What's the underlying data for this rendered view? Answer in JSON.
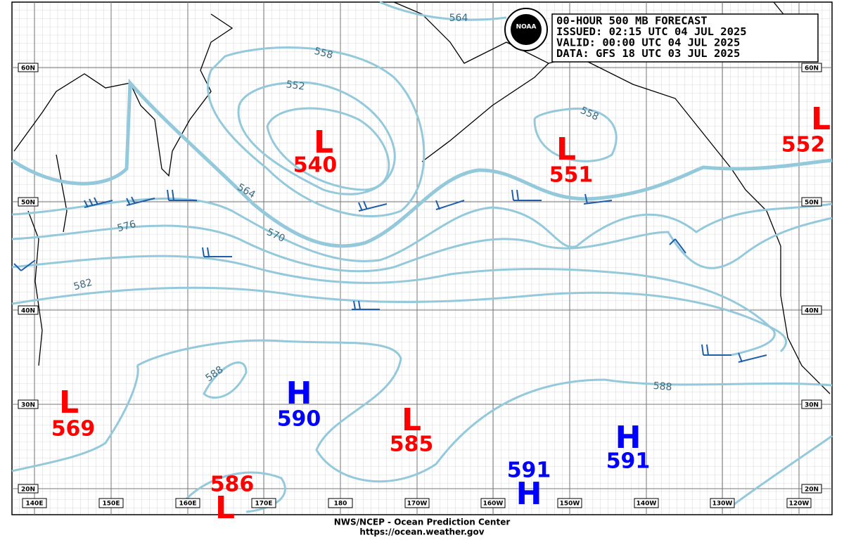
{
  "header": {
    "lines": [
      "00-HOUR 500 MB FORECAST",
      "ISSUED: 02:15 UTC 04 JUL 2025",
      "VALID:  00:00 UTC 04 JUL 2025",
      "DATA:  GFS 18 UTC 03 JUL 2025"
    ],
    "logo": "NOAA"
  },
  "footer": {
    "lines": [
      "NWS/NCEP - Ocean Prediction Center",
      "https://ocean.weather.gov"
    ]
  },
  "lat_labels": [
    "60N",
    "50N",
    "40N",
    "30N",
    "20N"
  ],
  "lon_labels": [
    "140E",
    "150E",
    "160E",
    "170E",
    "180",
    "170W",
    "160W",
    "150W",
    "140W",
    "130W",
    "120W"
  ],
  "contour_labels": [
    "564",
    "558",
    "552",
    "558",
    "564",
    "570",
    "576",
    "582",
    "588",
    "588"
  ],
  "systems": [
    {
      "letter": "L",
      "value": "540",
      "color": "#ff0000"
    },
    {
      "letter": "L",
      "value": "551",
      "color": "#ff0000"
    },
    {
      "letter": "L",
      "value": "552",
      "color": "#ff0000"
    },
    {
      "letter": "L",
      "value": "569",
      "color": "#ff0000"
    },
    {
      "letter": "H",
      "value": "590",
      "color": "#0000ff"
    },
    {
      "letter": "L",
      "value": "585",
      "color": "#ff0000"
    },
    {
      "letter": "H",
      "value": "591",
      "color": "#0000ff"
    },
    {
      "letter": "H",
      "value": "591",
      "color": "#0000ff"
    },
    {
      "letter": "L",
      "value": "586",
      "color": "#ff0000"
    }
  ]
}
